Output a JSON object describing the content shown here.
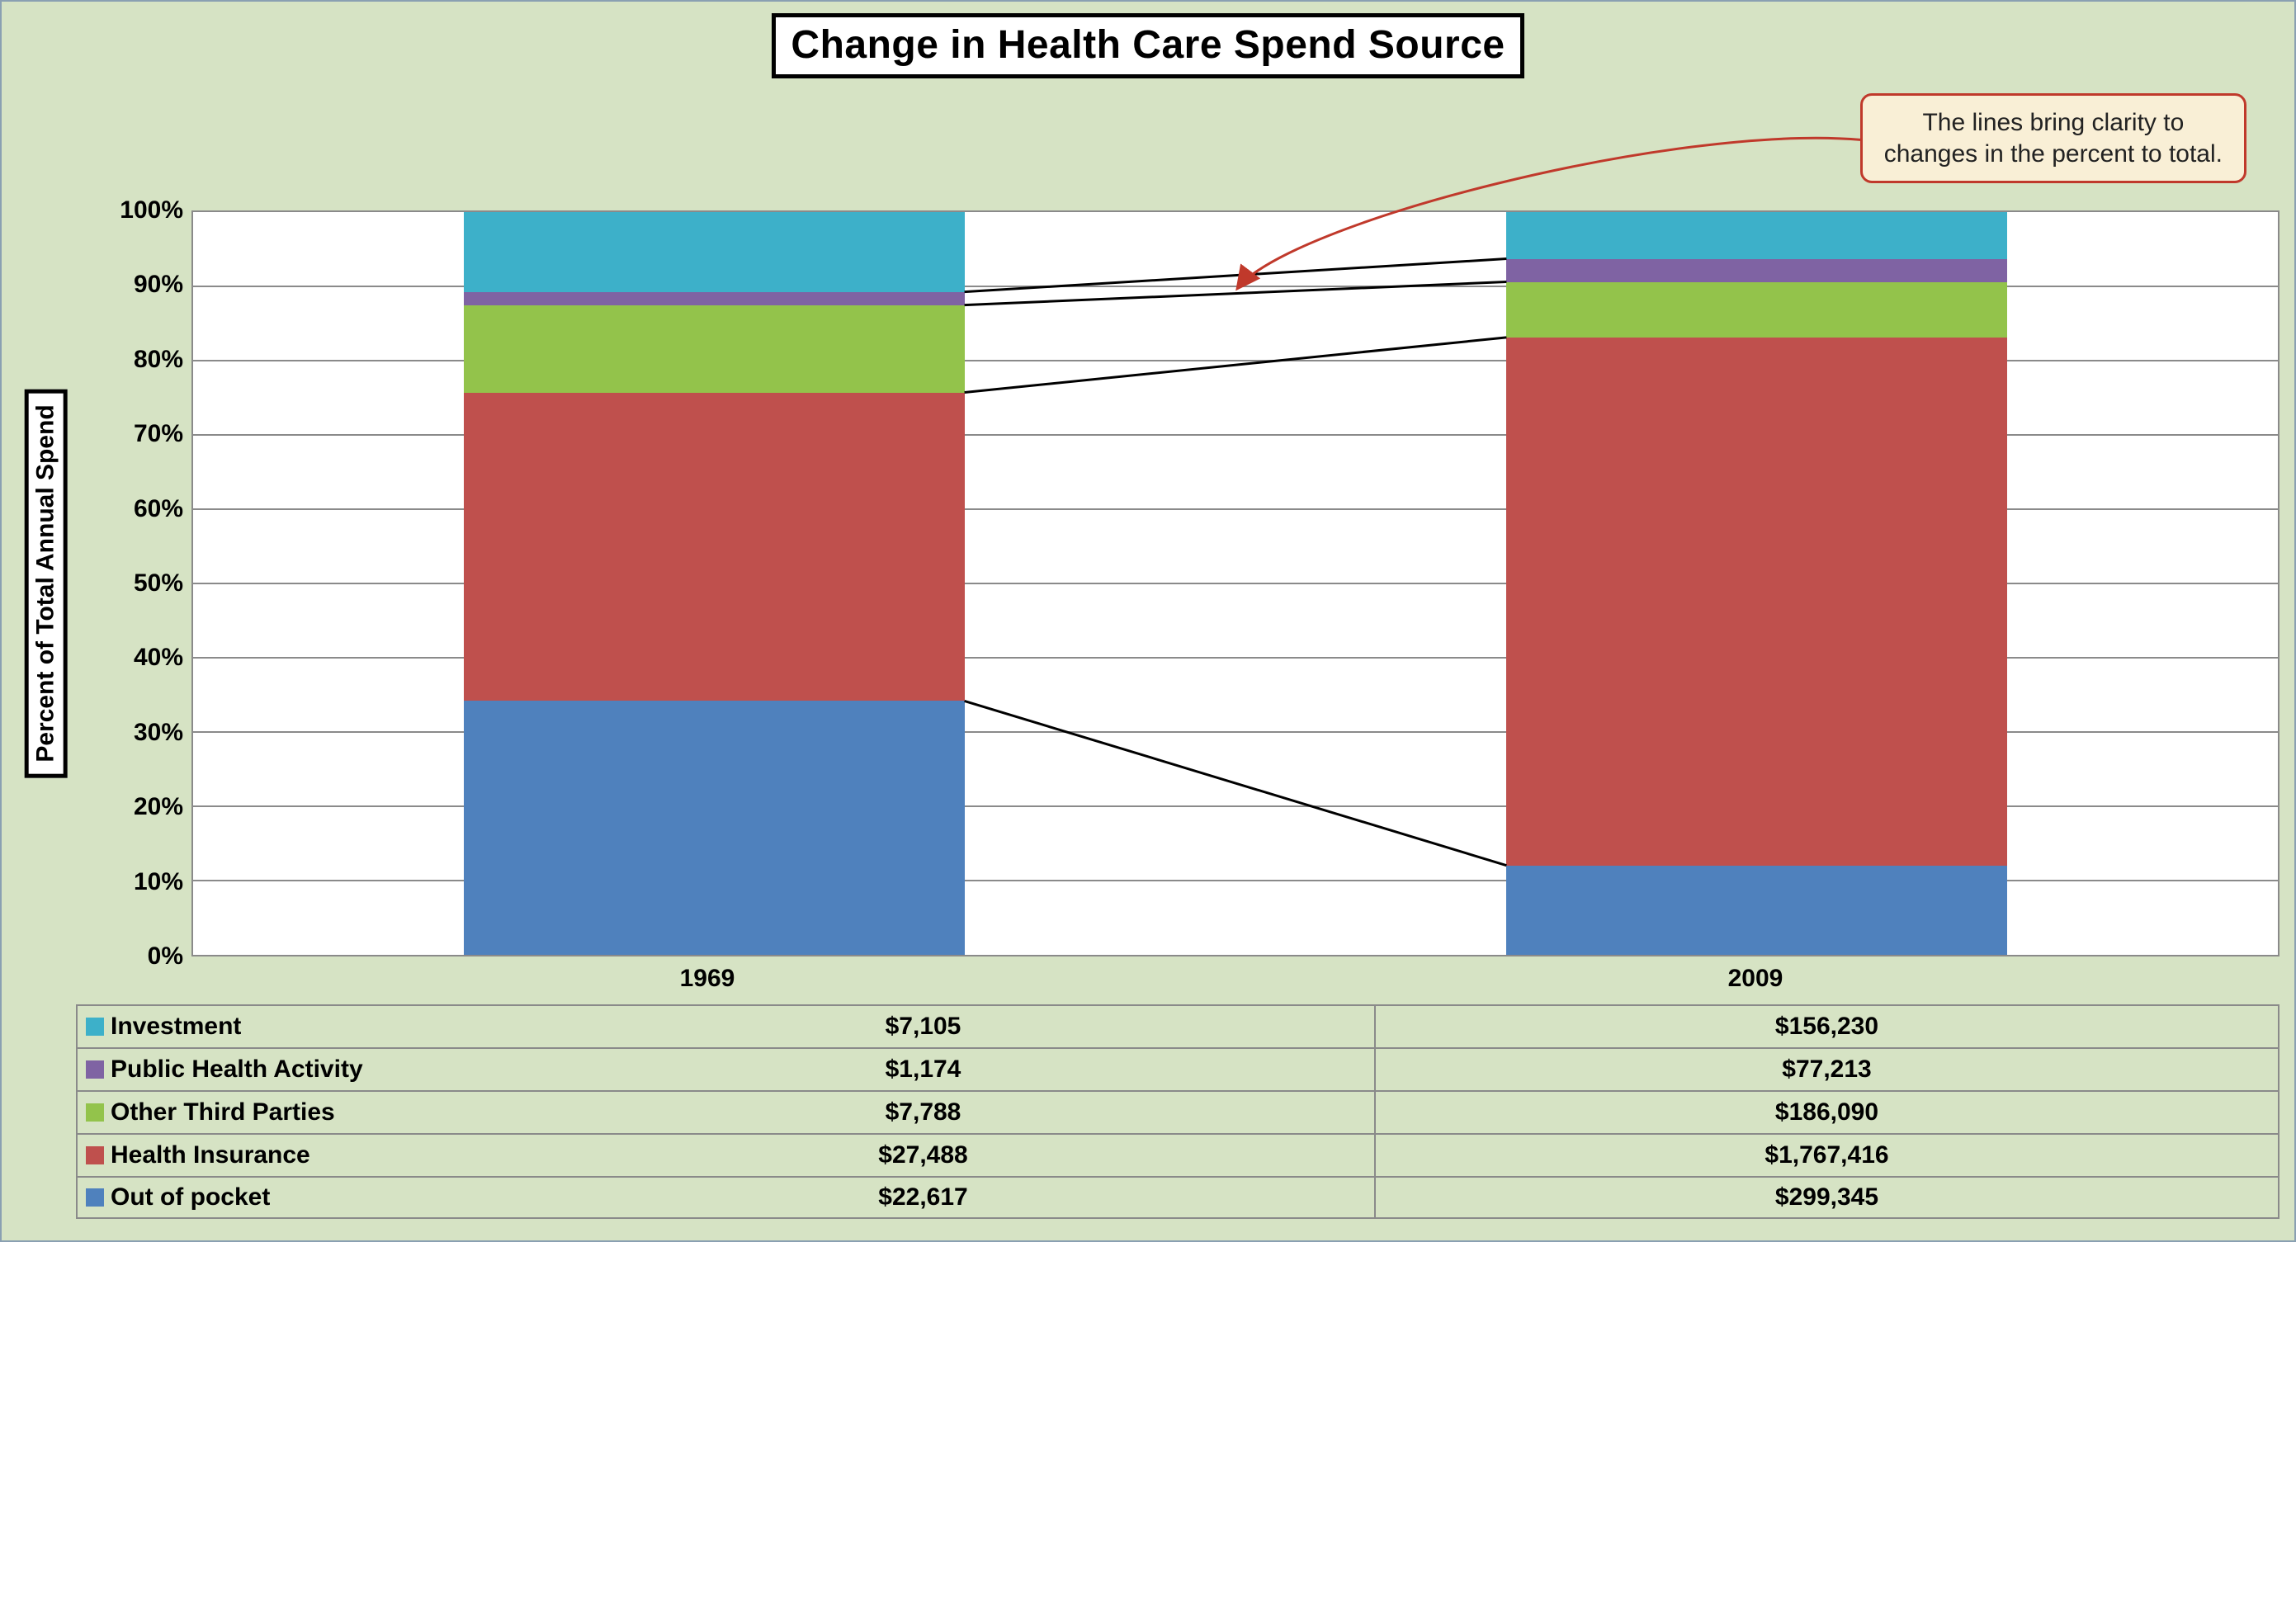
{
  "panel": {
    "background_color": "#d6e3c4",
    "border_color": "#8aa0b2"
  },
  "chart": {
    "type": "stacked-bar-100pct-with-connectors",
    "title": "Change in Health Care Spend Source",
    "y_axis_title": "Percent of Total Annual Spend",
    "grid_color": "#8a8a8a",
    "chart_background": "#ffffff",
    "y_ticks_pct": [
      0,
      10,
      20,
      30,
      40,
      50,
      60,
      70,
      80,
      90,
      100
    ],
    "y_tick_labels": [
      "0%",
      "10%",
      "20%",
      "30%",
      "40%",
      "50%",
      "60%",
      "70%",
      "80%",
      "90%",
      "100%"
    ],
    "categories": [
      "1969",
      "2009"
    ],
    "series": [
      {
        "key": "investment",
        "label": "Investment",
        "color": "#3db0c9"
      },
      {
        "key": "public_health",
        "label": "Public Health Activity",
        "color": "#7f63a3"
      },
      {
        "key": "other_third",
        "label": "Other Third Parties",
        "color": "#93c34b"
      },
      {
        "key": "health_ins",
        "label": "Health Insurance",
        "color": "#bf504d"
      },
      {
        "key": "out_of_pocket",
        "label": "Out of pocket",
        "color": "#4f81bd"
      }
    ],
    "table_order": [
      "investment",
      "public_health",
      "other_third",
      "health_ins",
      "out_of_pocket"
    ],
    "data": {
      "1969": {
        "investment": 7105,
        "public_health": 1174,
        "other_third": 7788,
        "health_ins": 27488,
        "out_of_pocket": 22617
      },
      "2009": {
        "investment": 156230,
        "public_health": 77213,
        "other_third": 186090,
        "health_ins": 1767416,
        "out_of_pocket": 299345
      }
    },
    "table_display": {
      "1969": {
        "investment": "$7,105",
        "public_health": "$1,174",
        "other_third": "$7,788",
        "health_ins": "$27,488",
        "out_of_pocket": "$22,617"
      },
      "2009": {
        "investment": "$156,230",
        "public_health": "$77,213",
        "other_third": "$186,090",
        "health_ins": "$1,767,416",
        "out_of_pocket": "$299,345"
      }
    },
    "connector_color": "#000000",
    "connector_width": 3
  },
  "callout": {
    "line1": "The lines bring clarity to",
    "line2": "changes in the percent to total.",
    "background_color": "#f9efd6",
    "border_color": "#c0392b",
    "arrow_color": "#c0392b"
  }
}
